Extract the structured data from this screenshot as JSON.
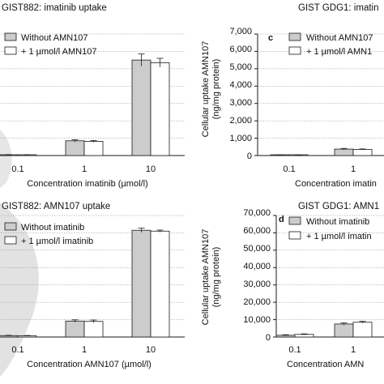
{
  "colors": {
    "series_a": "#cccccc",
    "series_b": "#ffffff",
    "outline": "#1a1a1a",
    "grid": "#8a8a8a",
    "watermark": "#dcdcdc"
  },
  "chart_data": [
    {
      "type": "bar",
      "panel_letter": "",
      "title": "GIST882: imatinib uptake",
      "xlabel": "Concentration imatinib (µmol/l)",
      "ylabel": "",
      "categories": [
        "0.1",
        "1",
        "10"
      ],
      "yticks": [],
      "ylim": [
        0,
        7000
      ],
      "grid": true,
      "legend_position": "top-left",
      "series": [
        {
          "name": "Without AMN107",
          "values": [
            40,
            850,
            5500
          ],
          "errors": [
            15,
            60,
            350
          ]
        },
        {
          "name": "+ 1 µmol/l AMN107",
          "values": [
            30,
            820,
            5350
          ],
          "errors": [
            15,
            50,
            250
          ]
        }
      ]
    },
    {
      "type": "bar",
      "panel_letter": "c",
      "title": "GIST GDG1: imatin",
      "xlabel": "Concentration imatin",
      "ylabel": "Cellular uptake AMN107",
      "ylabel2": "(ng/mg protein)",
      "categories": [
        "0.1",
        "1"
      ],
      "yticks": [
        "0",
        "1,000",
        "2,000",
        "3,000",
        "4,000",
        "5,000",
        "6,000",
        "7,000"
      ],
      "ylim": [
        0,
        7000
      ],
      "grid": true,
      "legend_position": "top-left",
      "series": [
        {
          "name": "Without AMN107",
          "values": [
            20,
            370
          ],
          "errors": [
            10,
            40
          ]
        },
        {
          "name": "+ 1 µmol/l AMN1",
          "values": [
            15,
            350
          ],
          "errors": [
            10,
            30
          ]
        }
      ]
    },
    {
      "type": "bar",
      "panel_letter": "",
      "title": "GIST882: AMN107 uptake",
      "xlabel": "Concentration AMN107 (µmol/l)",
      "ylabel": "",
      "categories": [
        "0.1",
        "1",
        "10"
      ],
      "yticks": [],
      "ylim": [
        0,
        70000
      ],
      "grid": true,
      "legend_position": "top-left",
      "series": [
        {
          "name": "Without imatinib",
          "values": [
            800,
            9200,
            61500
          ],
          "errors": [
            200,
            700,
            1200
          ]
        },
        {
          "name": "+ 1 µmol/l imatinib",
          "values": [
            700,
            9000,
            61000
          ],
          "errors": [
            200,
            800,
            600
          ]
        }
      ]
    },
    {
      "type": "bar",
      "panel_letter": "d",
      "title": "GIST GDG1: AMN1",
      "xlabel": "Concentration AMN",
      "ylabel": "Cellular uptake AMN107",
      "ylabel2": "(ng/mg protein)",
      "categories": [
        "0.1",
        "1"
      ],
      "yticks": [
        "0",
        "10,000",
        "20,000",
        "30,000",
        "40,000",
        "50,000",
        "60,000",
        "70,000"
      ],
      "ylim": [
        0,
        70000
      ],
      "grid": true,
      "legend_position": "top-left",
      "series": [
        {
          "name": "Without imatinib",
          "values": [
            1000,
            7500
          ],
          "errors": [
            300,
            600
          ]
        },
        {
          "name": "+ 1 µmol/l imatin",
          "values": [
            1500,
            8500
          ],
          "errors": [
            300,
            500
          ]
        }
      ]
    }
  ]
}
